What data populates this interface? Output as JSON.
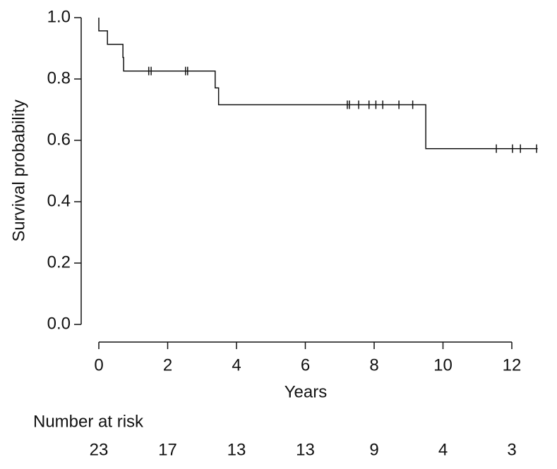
{
  "chart_data": {
    "type": "step",
    "ylabel": "Survival probability",
    "xlabel": "Years",
    "x": [
      0,
      0,
      0.25,
      0.7,
      0.72,
      3.38,
      3.48,
      9.5,
      12.75
    ],
    "values": [
      1.0,
      0.957,
      0.913,
      0.87,
      0.826,
      0.771,
      0.716,
      0.573,
      0.573
    ],
    "color": "#111111",
    "censored": {
      "x": [
        1.45,
        1.52,
        2.52,
        2.58,
        7.22,
        7.28,
        7.55,
        7.85,
        8.05,
        8.25,
        8.72,
        9.12,
        11.55,
        12.02,
        12.25,
        12.72
      ],
      "values": [
        0.826,
        0.826,
        0.826,
        0.826,
        0.716,
        0.716,
        0.716,
        0.716,
        0.716,
        0.716,
        0.716,
        0.716,
        0.573,
        0.573,
        0.573,
        0.573
      ]
    },
    "xlim": [
      0,
      12
    ],
    "xticks": [
      0,
      2,
      4,
      6,
      8,
      10,
      12
    ],
    "ylim": [
      0,
      1
    ],
    "yticks": [
      {
        "value": 0,
        "label": "0.0"
      },
      {
        "value": 0.2,
        "label": "0.2"
      },
      {
        "value": 0.4,
        "label": "0.4"
      },
      {
        "value": 0.6,
        "label": "0.6"
      },
      {
        "value": 0.8,
        "label": "0.8"
      },
      {
        "value": 1,
        "label": "1.0"
      }
    ],
    "risk_table": {
      "title": "Number at risk",
      "x": [
        0,
        2,
        4,
        6,
        8,
        10,
        12
      ],
      "values": [
        23,
        17,
        13,
        13,
        9,
        4,
        3
      ]
    }
  }
}
